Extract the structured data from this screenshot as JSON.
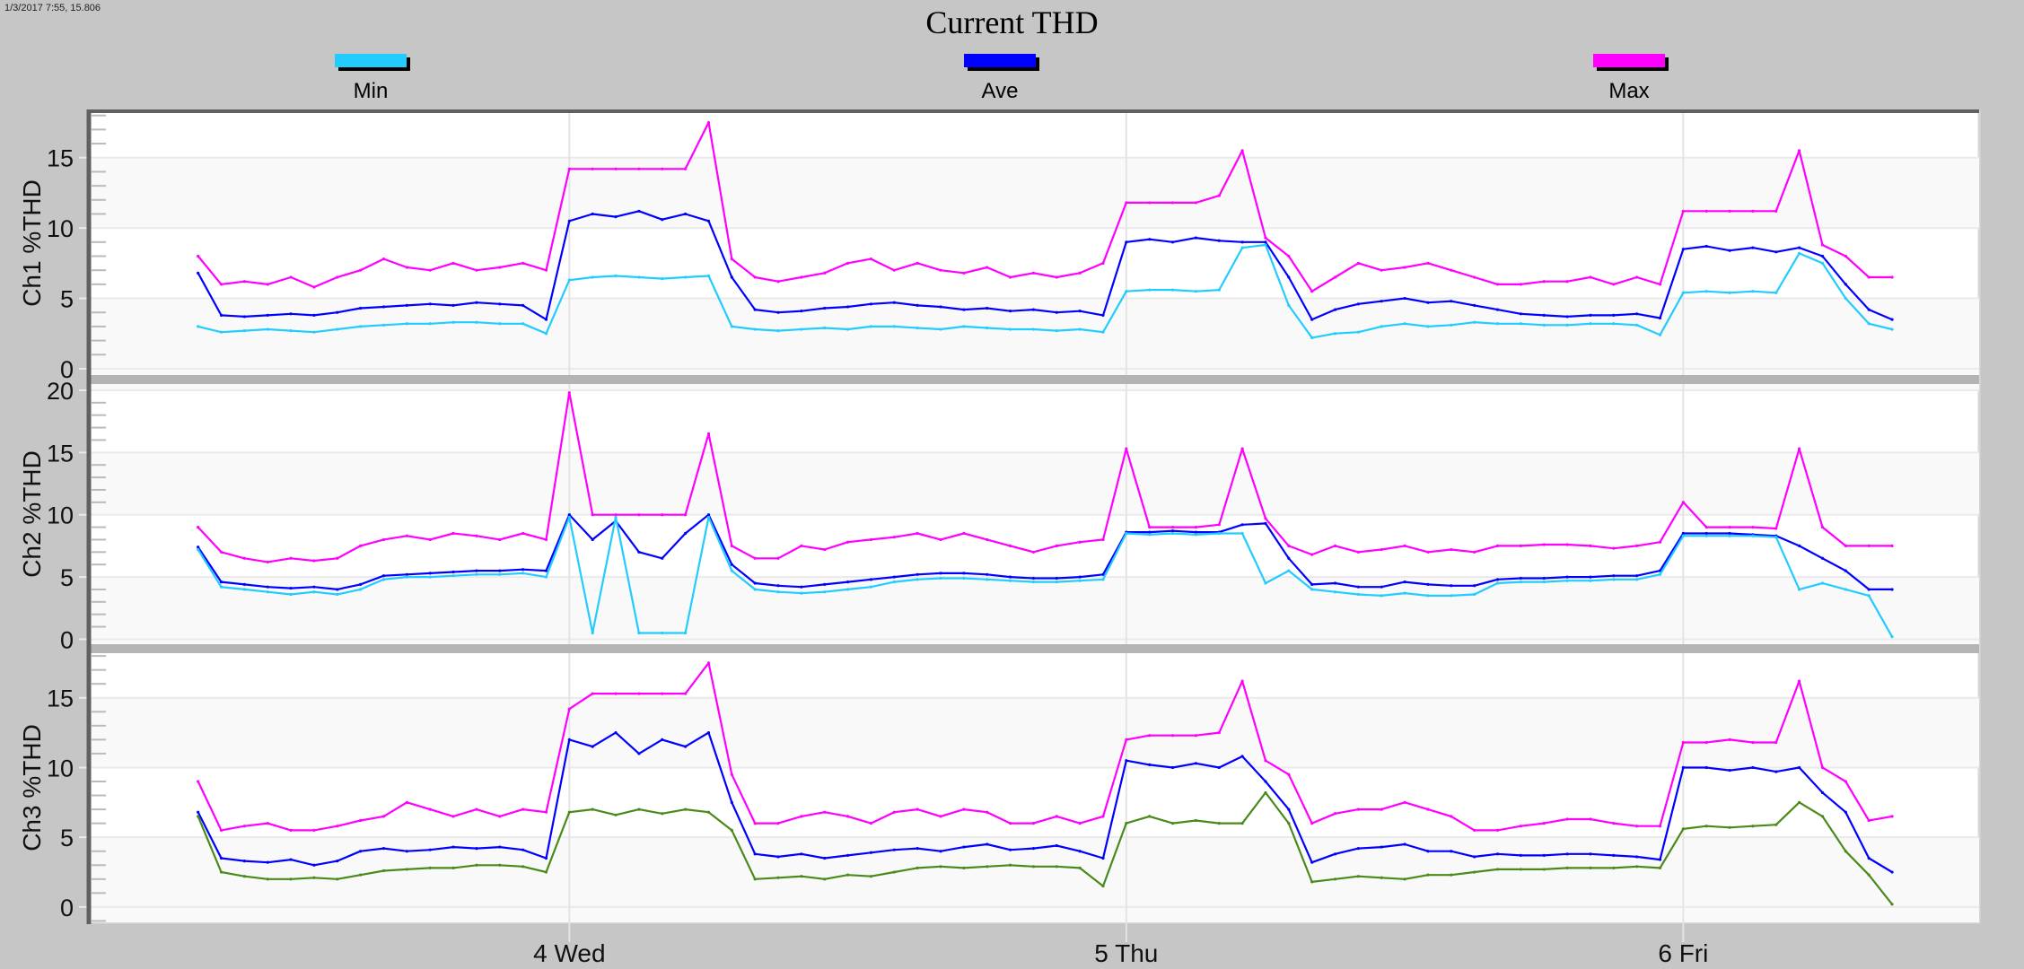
{
  "cursor_readout": "1/3/2017 7:55, 15.806",
  "chart_data": {
    "type": "line",
    "title": "Current THD",
    "legend": [
      {
        "name": "Min",
        "color": "#22ccff"
      },
      {
        "name": "Ave",
        "color": "#0000ff"
      },
      {
        "name": "Max",
        "color": "#ff00ff"
      }
    ],
    "legend_placement": "top",
    "grid": true,
    "x_range": [
      "2017-01-03 03:20",
      "2017-01-06 12:45"
    ],
    "x_tick_labels": [
      {
        "label": "4 Wed",
        "time": "2017-01-04 00:00"
      },
      {
        "label": "5 Thu",
        "time": "2017-01-05 00:00"
      },
      {
        "label": "6 Fri",
        "time": "2017-01-06 00:00"
      }
    ],
    "x_start": "2017-01-03 08:00",
    "x_interval": "1 hour",
    "panels": [
      {
        "ylabel": "Ch1 %THD",
        "ylim": [
          -0.45,
          18.3
        ],
        "y_ticks": [
          "0",
          "5",
          "10",
          "15"
        ],
        "series": [
          {
            "name": "Min",
            "color": "#22ccff",
            "values": [
              3.0,
              2.6,
              2.7,
              2.8,
              2.7,
              2.6,
              2.8,
              3.0,
              3.1,
              3.2,
              3.2,
              3.3,
              3.3,
              3.2,
              3.2,
              2.5,
              6.3,
              6.5,
              6.6,
              6.5,
              6.4,
              6.5,
              6.6,
              3.0,
              2.8,
              2.7,
              2.8,
              2.9,
              2.8,
              3.0,
              3.0,
              2.9,
              2.8,
              3.0,
              2.9,
              2.8,
              2.8,
              2.7,
              2.8,
              2.6,
              5.5,
              5.6,
              5.6,
              5.5,
              5.6,
              8.6,
              8.8,
              4.5,
              2.2,
              2.5,
              2.6,
              3.0,
              3.2,
              3.0,
              3.1,
              3.3,
              3.2,
              3.2,
              3.1,
              3.1,
              3.2,
              3.2,
              3.1,
              2.4,
              5.4,
              5.5,
              5.4,
              5.5,
              5.4,
              8.2,
              7.5,
              5.0,
              3.2,
              2.8
            ]
          },
          {
            "name": "Ave",
            "color": "#0000ff",
            "values": [
              6.8,
              3.8,
              3.7,
              3.8,
              3.9,
              3.8,
              4.0,
              4.3,
              4.4,
              4.5,
              4.6,
              4.5,
              4.7,
              4.6,
              4.5,
              3.5,
              10.5,
              11.0,
              10.8,
              11.2,
              10.6,
              11.0,
              10.5,
              6.5,
              4.2,
              4.0,
              4.1,
              4.3,
              4.4,
              4.6,
              4.7,
              4.5,
              4.4,
              4.2,
              4.3,
              4.1,
              4.2,
              4.0,
              4.1,
              3.8,
              9.0,
              9.2,
              9.0,
              9.3,
              9.1,
              9.0,
              9.0,
              6.5,
              3.5,
              4.2,
              4.6,
              4.8,
              5.0,
              4.7,
              4.8,
              4.5,
              4.2,
              3.9,
              3.8,
              3.7,
              3.8,
              3.8,
              3.9,
              3.6,
              8.5,
              8.7,
              8.4,
              8.6,
              8.3,
              8.6,
              8.0,
              6.0,
              4.2,
              3.5
            ]
          },
          {
            "name": "Max",
            "color": "#ff00ff",
            "values": [
              8.0,
              6.0,
              6.2,
              6.0,
              6.5,
              5.8,
              6.5,
              7.0,
              7.8,
              7.2,
              7.0,
              7.5,
              7.0,
              7.2,
              7.5,
              7.0,
              14.2,
              14.2,
              14.2,
              14.2,
              14.2,
              14.2,
              17.5,
              7.8,
              6.5,
              6.2,
              6.5,
              6.8,
              7.5,
              7.8,
              7.0,
              7.5,
              7.0,
              6.8,
              7.2,
              6.5,
              6.8,
              6.5,
              6.8,
              7.5,
              11.8,
              11.8,
              11.8,
              11.8,
              12.3,
              15.5,
              9.3,
              8.0,
              5.5,
              6.5,
              7.5,
              7.0,
              7.2,
              7.5,
              7.0,
              6.5,
              6.0,
              6.0,
              6.2,
              6.2,
              6.5,
              6.0,
              6.5,
              6.0,
              11.2,
              11.2,
              11.2,
              11.2,
              11.2,
              15.5,
              8.8,
              8.0,
              6.5,
              6.5
            ]
          }
        ]
      },
      {
        "ylabel": "Ch2 %THD",
        "ylim": [
          -0.4,
          20.5
        ],
        "y_ticks": [
          "0",
          "5",
          "10",
          "15",
          "20"
        ],
        "series": [
          {
            "name": "Min",
            "color": "#22ccff",
            "values": [
              7.2,
              4.2,
              4.0,
              3.8,
              3.6,
              3.8,
              3.6,
              4.0,
              4.8,
              5.0,
              5.0,
              5.1,
              5.2,
              5.2,
              5.3,
              5.0,
              9.8,
              0.5,
              9.8,
              0.5,
              0.5,
              0.5,
              9.8,
              5.5,
              4.0,
              3.8,
              3.7,
              3.8,
              4.0,
              4.2,
              4.6,
              4.8,
              4.9,
              4.9,
              4.8,
              4.7,
              4.6,
              4.6,
              4.7,
              4.8,
              8.5,
              8.4,
              8.5,
              8.4,
              8.5,
              8.5,
              4.5,
              5.5,
              4.0,
              3.8,
              3.6,
              3.5,
              3.7,
              3.5,
              3.5,
              3.6,
              4.5,
              4.6,
              4.6,
              4.7,
              4.7,
              4.8,
              4.8,
              5.2,
              8.3,
              8.3,
              8.3,
              8.3,
              8.2,
              4.0,
              4.5,
              4.0,
              3.5,
              0.2
            ]
          },
          {
            "name": "Ave",
            "color": "#0000ff",
            "values": [
              7.4,
              4.6,
              4.4,
              4.2,
              4.1,
              4.2,
              4.0,
              4.4,
              5.1,
              5.2,
              5.3,
              5.4,
              5.5,
              5.5,
              5.6,
              5.5,
              10.0,
              8.0,
              9.5,
              7.0,
              6.5,
              8.5,
              10.0,
              6.0,
              4.5,
              4.3,
              4.2,
              4.4,
              4.6,
              4.8,
              5.0,
              5.2,
              5.3,
              5.3,
              5.2,
              5.0,
              4.9,
              4.9,
              5.0,
              5.2,
              8.6,
              8.6,
              8.7,
              8.6,
              8.6,
              9.2,
              9.3,
              6.5,
              4.4,
              4.5,
              4.2,
              4.2,
              4.6,
              4.4,
              4.3,
              4.3,
              4.8,
              4.9,
              4.9,
              5.0,
              5.0,
              5.1,
              5.1,
              5.5,
              8.5,
              8.5,
              8.5,
              8.4,
              8.3,
              7.5,
              6.5,
              5.5,
              4.0,
              4.0
            ]
          },
          {
            "name": "Max",
            "color": "#ff00ff",
            "values": [
              9.0,
              7.0,
              6.5,
              6.2,
              6.5,
              6.3,
              6.5,
              7.5,
              8.0,
              8.3,
              8.0,
              8.5,
              8.3,
              8.0,
              8.5,
              8.0,
              19.8,
              10.0,
              10.0,
              10.0,
              10.0,
              10.0,
              16.5,
              7.5,
              6.5,
              6.5,
              7.5,
              7.2,
              7.8,
              8.0,
              8.2,
              8.5,
              8.0,
              8.5,
              8.0,
              7.5,
              7.0,
              7.5,
              7.8,
              8.0,
              15.3,
              9.0,
              9.0,
              9.0,
              9.2,
              15.3,
              9.7,
              7.5,
              6.8,
              7.5,
              7.0,
              7.2,
              7.5,
              7.0,
              7.2,
              7.0,
              7.5,
              7.5,
              7.6,
              7.6,
              7.5,
              7.3,
              7.5,
              7.8,
              11.0,
              9.0,
              9.0,
              9.0,
              8.9,
              15.3,
              9.0,
              7.5,
              7.5,
              7.5
            ]
          }
        ]
      },
      {
        "ylabel": "Ch3 %THD",
        "ylim": [
          -1.1,
          18.2
        ],
        "y_ticks": [
          "0",
          "5",
          "10",
          "15"
        ],
        "series": [
          {
            "name": "Min",
            "color": "#4a8a1a",
            "values": [
              6.5,
              2.5,
              2.2,
              2.0,
              2.0,
              2.1,
              2.0,
              2.3,
              2.6,
              2.7,
              2.8,
              2.8,
              3.0,
              3.0,
              2.9,
              2.5,
              6.8,
              7.0,
              6.6,
              7.0,
              6.7,
              7.0,
              6.8,
              5.5,
              2.0,
              2.1,
              2.2,
              2.0,
              2.3,
              2.2,
              2.5,
              2.8,
              2.9,
              2.8,
              2.9,
              3.0,
              2.9,
              2.9,
              2.8,
              1.5,
              6.0,
              6.5,
              6.0,
              6.2,
              6.0,
              6.0,
              8.2,
              6.0,
              1.8,
              2.0,
              2.2,
              2.1,
              2.0,
              2.3,
              2.3,
              2.5,
              2.7,
              2.7,
              2.7,
              2.8,
              2.8,
              2.8,
              2.9,
              2.8,
              5.6,
              5.8,
              5.7,
              5.8,
              5.9,
              7.5,
              6.5,
              4.0,
              2.3,
              0.2
            ]
          },
          {
            "name": "Ave",
            "color": "#0000ff",
            "values": [
              6.8,
              3.5,
              3.3,
              3.2,
              3.4,
              3.0,
              3.3,
              4.0,
              4.2,
              4.0,
              4.1,
              4.3,
              4.2,
              4.3,
              4.1,
              3.5,
              12.0,
              11.5,
              12.5,
              11.0,
              12.0,
              11.5,
              12.5,
              7.5,
              3.8,
              3.6,
              3.8,
              3.5,
              3.7,
              3.9,
              4.1,
              4.2,
              4.0,
              4.3,
              4.5,
              4.1,
              4.2,
              4.4,
              4.0,
              3.5,
              10.5,
              10.2,
              10.0,
              10.3,
              10.0,
              10.8,
              9.0,
              7.0,
              3.2,
              3.8,
              4.2,
              4.3,
              4.5,
              4.0,
              4.0,
              3.6,
              3.8,
              3.7,
              3.7,
              3.8,
              3.8,
              3.7,
              3.6,
              3.4,
              10.0,
              10.0,
              9.8,
              10.0,
              9.7,
              10.0,
              8.2,
              6.8,
              3.5,
              2.5
            ]
          },
          {
            "name": "Max",
            "color": "#ff00ff",
            "values": [
              9.0,
              5.5,
              5.8,
              6.0,
              5.5,
              5.5,
              5.8,
              6.2,
              6.5,
              7.5,
              7.0,
              6.5,
              7.0,
              6.5,
              7.0,
              6.8,
              14.2,
              15.3,
              15.3,
              15.3,
              15.3,
              15.3,
              17.5,
              9.5,
              6.0,
              6.0,
              6.5,
              6.8,
              6.5,
              6.0,
              6.8,
              7.0,
              6.5,
              7.0,
              6.8,
              6.0,
              6.0,
              6.5,
              6.0,
              6.5,
              12.0,
              12.3,
              12.3,
              12.3,
              12.5,
              16.2,
              10.5,
              9.5,
              6.0,
              6.7,
              7.0,
              7.0,
              7.5,
              7.0,
              6.5,
              5.5,
              5.5,
              5.8,
              6.0,
              6.3,
              6.3,
              6.0,
              5.8,
              5.8,
              11.8,
              11.8,
              12.0,
              11.8,
              11.8,
              16.2,
              10.0,
              9.0,
              6.2,
              6.5
            ]
          }
        ]
      }
    ]
  }
}
